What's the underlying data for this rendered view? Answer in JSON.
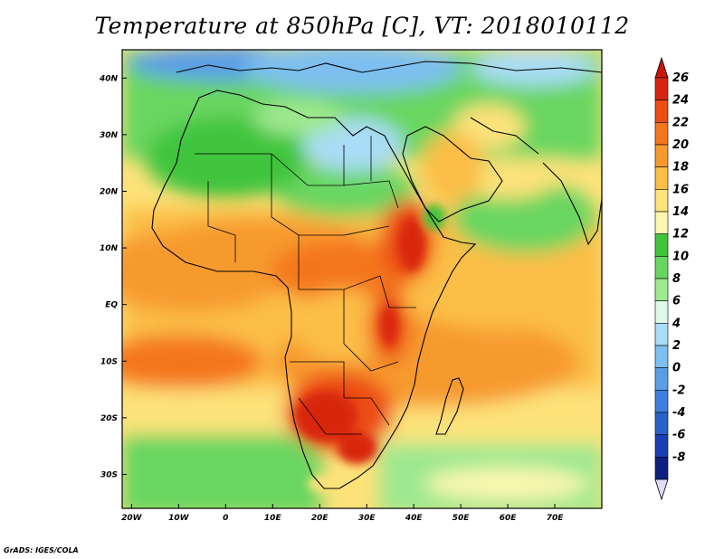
{
  "title": "Temperature at 850hPa [C], VT: 2018010112",
  "credit": "GrADS: IGES/COLA",
  "map": {
    "lon_range": [
      -22,
      80
    ],
    "lat_range": [
      -36,
      45
    ],
    "lon_ticks": [
      {
        "value": -20,
        "label": "20W"
      },
      {
        "value": -10,
        "label": "10W"
      },
      {
        "value": 0,
        "label": "0"
      },
      {
        "value": 10,
        "label": "10E"
      },
      {
        "value": 20,
        "label": "20E"
      },
      {
        "value": 30,
        "label": "30E"
      },
      {
        "value": 40,
        "label": "40E"
      },
      {
        "value": 50,
        "label": "50E"
      },
      {
        "value": 60,
        "label": "60E"
      },
      {
        "value": 70,
        "label": "70E"
      }
    ],
    "lat_ticks": [
      {
        "value": 40,
        "label": "40N"
      },
      {
        "value": 30,
        "label": "30N"
      },
      {
        "value": 20,
        "label": "20N"
      },
      {
        "value": 10,
        "label": "10N"
      },
      {
        "value": 0,
        "label": "EQ"
      },
      {
        "value": -10,
        "label": "10S"
      },
      {
        "value": -20,
        "label": "20S"
      },
      {
        "value": -30,
        "label": "30S"
      }
    ]
  },
  "colorbar": {
    "levels": [
      {
        "label": "26",
        "color": "#d8250f"
      },
      {
        "label": "24",
        "color": "#ec4e14"
      },
      {
        "label": "22",
        "color": "#f4761e"
      },
      {
        "label": "20",
        "color": "#f79a2e"
      },
      {
        "label": "18",
        "color": "#fbbe46"
      },
      {
        "label": "16",
        "color": "#fde27a"
      },
      {
        "label": "14",
        "color": "#fbf7b0"
      },
      {
        "label": "12",
        "color": "#3fc43c"
      },
      {
        "label": "10",
        "color": "#69d660"
      },
      {
        "label": "8",
        "color": "#9ee88f"
      },
      {
        "label": "6",
        "color": "#dff8ea"
      },
      {
        "label": "4",
        "color": "#a9dcf6"
      },
      {
        "label": "2",
        "color": "#7dbff0"
      },
      {
        "label": "0",
        "color": "#5a9ee7"
      },
      {
        "label": "-2",
        "color": "#3d7fdc"
      },
      {
        "label": "-4",
        "color": "#2a62cc"
      },
      {
        "label": "-6",
        "color": "#1940b0"
      },
      {
        "label": "-8",
        "color": "#0e1f80"
      }
    ],
    "over_color": "#c8160a",
    "under_color": "#e2dcf9"
  }
}
